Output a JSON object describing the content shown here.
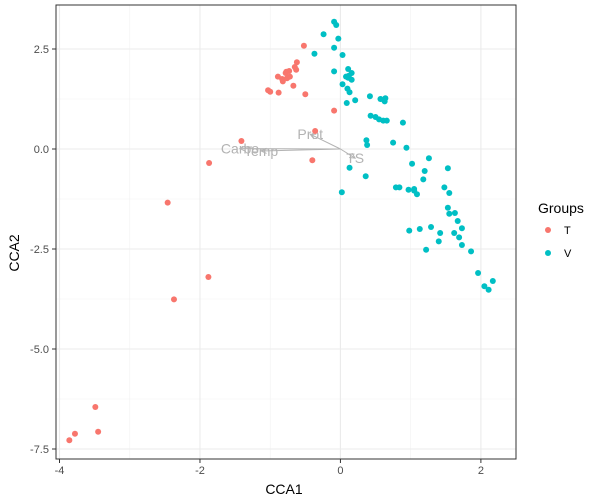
{
  "chart_data": {
    "type": "scatter",
    "xlabel": "CCA1",
    "ylabel": "CCA2",
    "xlim": [
      -4.05,
      2.5
    ],
    "ylim": [
      -7.75,
      3.6
    ],
    "x_ticks": [
      -4,
      -2,
      0,
      2
    ],
    "x_tick_labels": [
      "-4",
      "-2",
      "0",
      "2"
    ],
    "y_ticks": [
      -7.5,
      -5,
      -2.5,
      0,
      2.5
    ],
    "y_tick_labels": [
      "-7.5",
      "-5.0",
      "-2.5",
      "0.0",
      "2.5"
    ],
    "grid": true,
    "legend": {
      "title": "Groups",
      "position": "right"
    },
    "series": [
      {
        "name": "T",
        "color": "#F8766D",
        "points": [
          [
            -0.52,
            2.58
          ],
          [
            -0.62,
            2.17
          ],
          [
            -0.65,
            2.05
          ],
          [
            -0.63,
            1.98
          ],
          [
            -0.73,
            1.95
          ],
          [
            -0.77,
            1.93
          ],
          [
            -0.78,
            1.9
          ],
          [
            -0.83,
            1.75
          ],
          [
            -0.89,
            1.81
          ],
          [
            -0.72,
            1.81
          ],
          [
            -0.76,
            1.77
          ],
          [
            -0.67,
            1.58
          ],
          [
            -0.82,
            1.69
          ],
          [
            -1.03,
            1.47
          ],
          [
            -1.0,
            1.43
          ],
          [
            -0.88,
            1.41
          ],
          [
            -0.5,
            1.37
          ],
          [
            -0.09,
            0.96
          ],
          [
            -0.36,
            0.45
          ],
          [
            -1.41,
            0.2
          ],
          [
            -0.4,
            -0.28
          ],
          [
            -1.87,
            -0.35
          ],
          [
            -2.46,
            -1.34
          ],
          [
            -1.88,
            -3.2
          ],
          [
            -2.37,
            -3.76
          ],
          [
            -3.49,
            -6.45
          ],
          [
            -3.45,
            -7.07
          ],
          [
            -3.78,
            -7.12
          ],
          [
            -3.86,
            -7.28
          ]
        ]
      },
      {
        "name": "V",
        "color": "#00BFC4",
        "points": [
          [
            -0.09,
            3.18
          ],
          [
            -0.06,
            3.1
          ],
          [
            -0.24,
            2.87
          ],
          [
            -0.03,
            2.76
          ],
          [
            -0.09,
            2.53
          ],
          [
            -0.37,
            2.38
          ],
          [
            0.03,
            2.35
          ],
          [
            0.11,
            2.0
          ],
          [
            0.16,
            1.9
          ],
          [
            0.12,
            1.83
          ],
          [
            0.11,
            1.78
          ],
          [
            0.08,
            1.81
          ],
          [
            0.16,
            1.73
          ],
          [
            -0.09,
            1.94
          ],
          [
            0.03,
            1.62
          ],
          [
            0.1,
            1.51
          ],
          [
            0.13,
            1.42
          ],
          [
            0.21,
            1.22
          ],
          [
            0.42,
            1.32
          ],
          [
            0.09,
            1.15
          ],
          [
            0.57,
            1.25
          ],
          [
            0.64,
            1.27
          ],
          [
            0.63,
            1.19
          ],
          [
            0.43,
            0.83
          ],
          [
            0.5,
            0.8
          ],
          [
            0.55,
            0.74
          ],
          [
            0.61,
            0.71
          ],
          [
            0.66,
            0.71
          ],
          [
            0.89,
            0.66
          ],
          [
            0.37,
            0.22
          ],
          [
            0.38,
            0.1
          ],
          [
            0.94,
            0.03
          ],
          [
            1.02,
            -0.37
          ],
          [
            0.75,
            0.16
          ],
          [
            1.26,
            -0.23
          ],
          [
            1.2,
            -0.55
          ],
          [
            1.18,
            -0.76
          ],
          [
            1.05,
            -1.0
          ],
          [
            0.79,
            -0.96
          ],
          [
            0.84,
            -0.96
          ],
          [
            0.97,
            -1.02
          ],
          [
            1.05,
            -1.04
          ],
          [
            1.09,
            -1.13
          ],
          [
            1.48,
            -0.96
          ],
          [
            1.53,
            -0.48
          ],
          [
            1.55,
            -1.1
          ],
          [
            1.53,
            -1.47
          ],
          [
            1.63,
            -1.6
          ],
          [
            1.67,
            -1.8
          ],
          [
            1.73,
            -1.98
          ],
          [
            1.55,
            -1.62
          ],
          [
            0.36,
            -0.68
          ],
          [
            0.13,
            -0.47
          ],
          [
            0.02,
            -1.08
          ],
          [
            0.98,
            -2.04
          ],
          [
            1.13,
            -2.0
          ],
          [
            1.29,
            -1.95
          ],
          [
            1.42,
            -2.1
          ],
          [
            1.4,
            -2.31
          ],
          [
            1.62,
            -2.1
          ],
          [
            1.69,
            -2.21
          ],
          [
            1.73,
            -2.4
          ],
          [
            1.86,
            -2.56
          ],
          [
            1.96,
            -3.1
          ],
          [
            2.05,
            -3.43
          ],
          [
            2.11,
            -3.52
          ],
          [
            2.17,
            -3.3
          ],
          [
            1.22,
            -2.52
          ]
        ]
      }
    ],
    "biplot_arrows": [
      {
        "label": "Prot",
        "x": -0.43,
        "y": 0.37
      },
      {
        "label": "Carbo",
        "x": -1.43,
        "y": 0.01
      },
      {
        "label": "Temp",
        "x": -1.13,
        "y": -0.05
      },
      {
        "label": "TS",
        "x": 0.21,
        "y": -0.23
      }
    ]
  }
}
